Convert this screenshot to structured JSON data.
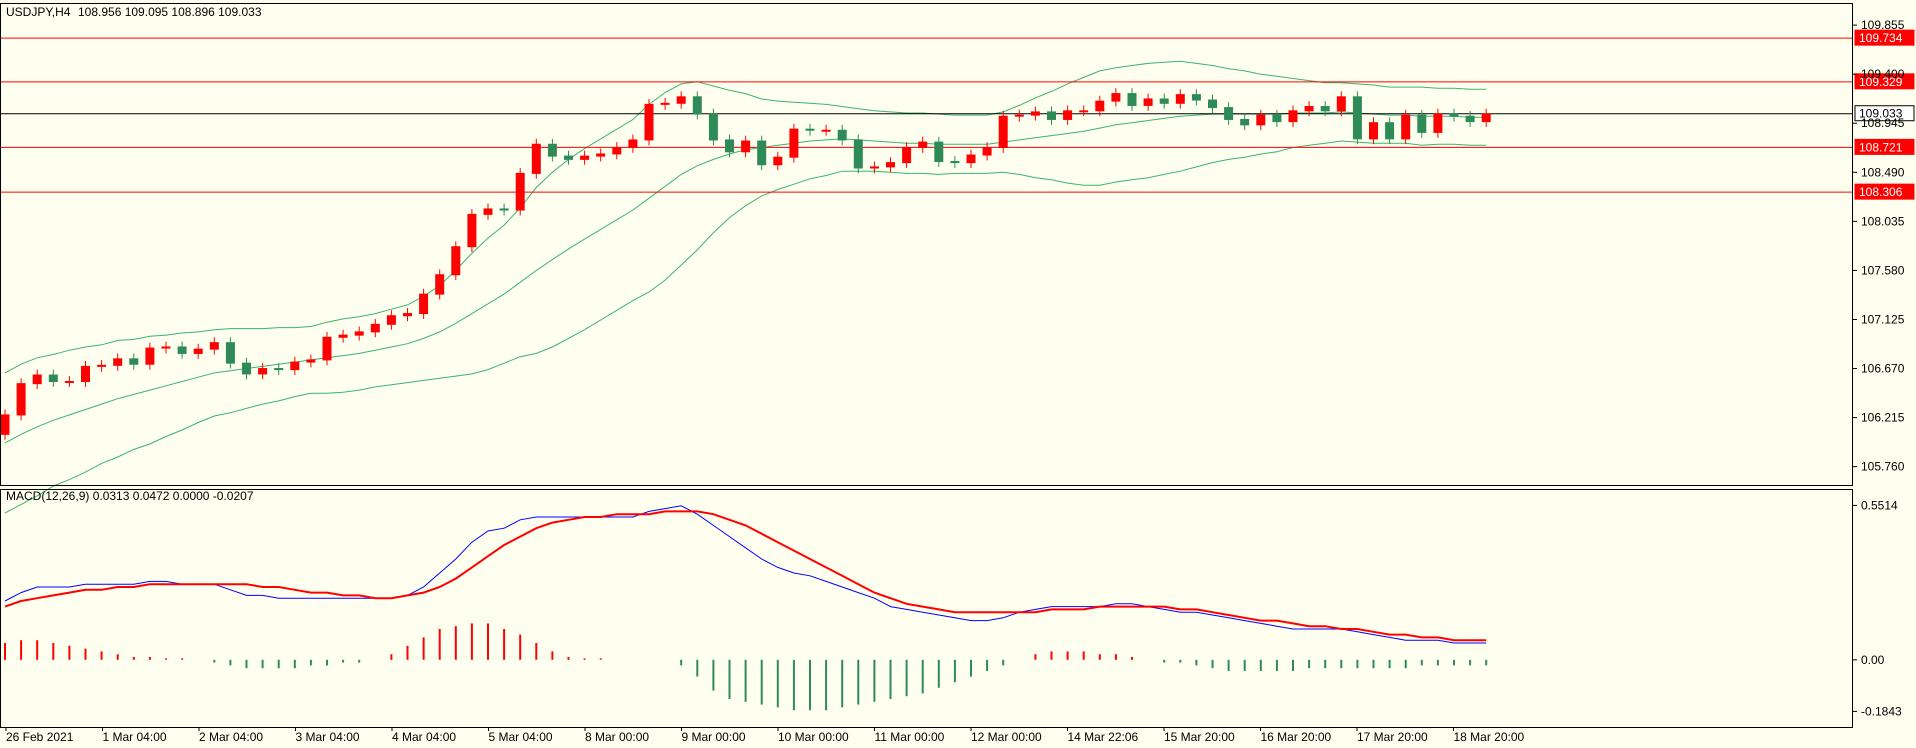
{
  "header": {
    "symbol": "USDJPY,H4",
    "ohlc": "108.956 109.095 108.896 109.033"
  },
  "macd": {
    "label": "MACD(12,26,9) 0.0313 0.0472 0.0000 -0.0207",
    "ticks": [
      "0.5514",
      "0.00",
      "-0.1843"
    ]
  },
  "price_axis": {
    "ticks": [
      "109.855",
      "109.400",
      "108.945",
      "108.490",
      "108.035",
      "107.580",
      "107.125",
      "106.670",
      "106.215",
      "105.760"
    ]
  },
  "levels": [
    {
      "label": "109.734",
      "value": 109.734,
      "kind": "red"
    },
    {
      "label": "109.329",
      "value": 109.329,
      "kind": "red"
    },
    {
      "label": "109.033",
      "value": 109.033,
      "kind": "current"
    },
    {
      "label": "108.721",
      "value": 108.721,
      "kind": "red"
    },
    {
      "label": "108.306",
      "value": 108.306,
      "kind": "red"
    }
  ],
  "time_axis": {
    "labels": [
      "26 Feb 2021",
      "1 Mar 04:00",
      "2 Mar 04:00",
      "3 Mar 04:00",
      "4 Mar 04:00",
      "5 Mar 04:00",
      "8 Mar 00:00",
      "9 Mar 00:00",
      "10 Mar 00:00",
      "11 Mar 00:00",
      "12 Mar 00:00",
      "14 Mar 22:06",
      "15 Mar 20:00",
      "16 Mar 20:00",
      "17 Mar 20:00",
      "18 Mar 20:00"
    ]
  },
  "colors": {
    "background": "#fffff0",
    "bull": "#ff0000",
    "bear": "#2e8b57",
    "bands": "#3cb371",
    "macd_line": "#0000ff",
    "signal_line": "#ff0000",
    "level": "#ff0000"
  },
  "chart_data": {
    "type": "candlestick",
    "ylim": [
      105.59,
      110.06
    ],
    "close": [
      106.24,
      106.53,
      106.61,
      106.55,
      106.55,
      106.69,
      106.7,
      106.76,
      106.71,
      106.86,
      106.87,
      106.81,
      106.85,
      106.91,
      106.72,
      106.62,
      106.67,
      106.66,
      106.73,
      106.75,
      106.96,
      106.98,
      107.01,
      107.08,
      107.16,
      107.18,
      107.36,
      107.54,
      107.8,
      108.1,
      108.15,
      108.14,
      108.48,
      108.75,
      108.64,
      108.61,
      108.64,
      108.66,
      108.72,
      108.79,
      109.12,
      109.13,
      109.19,
      109.03,
      108.79,
      108.68,
      108.78,
      108.56,
      108.63,
      108.89,
      108.88,
      108.88,
      108.79,
      108.53,
      108.54,
      108.58,
      108.72,
      108.77,
      108.59,
      108.58,
      108.65,
      108.72,
      109.01,
      109.02,
      109.05,
      108.98,
      109.06,
      109.06,
      109.15,
      109.22,
      109.11,
      109.17,
      109.13,
      109.21,
      109.16,
      109.09,
      108.98,
      108.93,
      109.02,
      108.96,
      109.06,
      109.1,
      109.06,
      109.19,
      108.8,
      108.95,
      108.8,
      109.02,
      108.86,
      109.03,
      109.01,
      108.96,
      109.03
    ],
    "bollinger": {
      "upper": [
        106.63,
        106.71,
        106.77,
        106.8,
        106.84,
        106.87,
        106.89,
        106.93,
        106.94,
        106.97,
        106.98,
        107.0,
        107.01,
        107.03,
        107.04,
        107.04,
        107.04,
        107.05,
        107.05,
        107.06,
        107.1,
        107.13,
        107.15,
        107.18,
        107.22,
        107.26,
        107.34,
        107.44,
        107.58,
        107.74,
        107.88,
        108.0,
        108.16,
        108.35,
        108.49,
        108.61,
        108.71,
        108.8,
        108.89,
        108.98,
        109.12,
        109.23,
        109.31,
        109.33,
        109.29,
        109.25,
        109.22,
        109.17,
        109.15,
        109.14,
        109.13,
        109.12,
        109.1,
        109.08,
        109.06,
        109.05,
        109.04,
        109.04,
        109.03,
        109.02,
        109.02,
        109.02,
        109.05,
        109.11,
        109.18,
        109.24,
        109.31,
        109.37,
        109.43,
        109.46,
        109.48,
        109.5,
        109.51,
        109.52,
        109.5,
        109.48,
        109.45,
        109.43,
        109.4,
        109.38,
        109.36,
        109.34,
        109.32,
        109.32,
        109.31,
        109.3,
        109.28,
        109.28,
        109.28,
        109.27,
        109.27,
        109.26,
        109.26
      ],
      "middle": [
        105.98,
        106.06,
        106.13,
        106.19,
        106.24,
        106.29,
        106.34,
        106.39,
        106.43,
        106.47,
        106.51,
        106.55,
        106.59,
        106.63,
        106.65,
        106.67,
        106.69,
        106.71,
        106.73,
        106.75,
        106.77,
        106.79,
        106.81,
        106.84,
        106.87,
        106.9,
        106.95,
        107.01,
        107.09,
        107.18,
        107.27,
        107.36,
        107.47,
        107.58,
        107.68,
        107.78,
        107.87,
        107.96,
        108.05,
        108.14,
        108.25,
        108.36,
        108.47,
        108.55,
        108.61,
        108.66,
        108.7,
        108.72,
        108.74,
        108.76,
        108.78,
        108.79,
        108.8,
        108.79,
        108.78,
        108.77,
        108.76,
        108.76,
        108.75,
        108.75,
        108.75,
        108.75,
        108.77,
        108.79,
        108.81,
        108.83,
        108.85,
        108.87,
        108.9,
        108.93,
        108.95,
        108.97,
        108.99,
        109.01,
        109.02,
        109.03,
        109.03,
        109.03,
        109.03,
        109.03,
        109.04,
        109.04,
        109.04,
        109.05,
        109.04,
        109.03,
        109.02,
        109.02,
        109.01,
        109.01,
        109.01,
        109.0,
        109.0
      ],
      "lower": [
        105.33,
        105.41,
        105.49,
        105.58,
        105.64,
        105.71,
        105.79,
        105.85,
        105.92,
        105.97,
        106.04,
        106.1,
        106.17,
        106.23,
        106.26,
        106.3,
        106.34,
        106.37,
        106.41,
        106.44,
        106.44,
        106.45,
        106.47,
        106.5,
        106.52,
        106.54,
        106.56,
        106.58,
        106.6,
        106.62,
        106.66,
        106.72,
        106.78,
        106.81,
        106.87,
        106.95,
        107.03,
        107.12,
        107.21,
        107.3,
        107.38,
        107.49,
        107.63,
        107.77,
        107.93,
        108.07,
        108.18,
        108.27,
        108.33,
        108.38,
        108.43,
        108.46,
        108.5,
        108.5,
        108.5,
        108.49,
        108.48,
        108.48,
        108.47,
        108.48,
        108.48,
        108.48,
        108.49,
        108.47,
        108.44,
        108.42,
        108.39,
        108.37,
        108.37,
        108.4,
        108.42,
        108.44,
        108.47,
        108.5,
        108.54,
        108.58,
        108.61,
        108.63,
        108.66,
        108.68,
        108.72,
        108.74,
        108.76,
        108.78,
        108.77,
        108.76,
        108.76,
        108.76,
        108.74,
        108.75,
        108.75,
        108.74,
        108.74
      ]
    },
    "macd_ylim": [
      -0.24,
      0.61
    ],
    "macd_line": [
      0.21,
      0.24,
      0.26,
      0.26,
      0.26,
      0.27,
      0.27,
      0.27,
      0.27,
      0.28,
      0.28,
      0.27,
      0.27,
      0.27,
      0.25,
      0.23,
      0.23,
      0.22,
      0.22,
      0.22,
      0.22,
      0.22,
      0.22,
      0.22,
      0.22,
      0.23,
      0.26,
      0.31,
      0.36,
      0.42,
      0.46,
      0.47,
      0.5,
      0.51,
      0.51,
      0.51,
      0.51,
      0.51,
      0.51,
      0.51,
      0.53,
      0.54,
      0.55,
      0.52,
      0.48,
      0.44,
      0.4,
      0.36,
      0.33,
      0.31,
      0.3,
      0.28,
      0.26,
      0.24,
      0.22,
      0.19,
      0.18,
      0.17,
      0.16,
      0.15,
      0.14,
      0.14,
      0.15,
      0.17,
      0.18,
      0.19,
      0.19,
      0.19,
      0.19,
      0.2,
      0.2,
      0.19,
      0.18,
      0.17,
      0.17,
      0.16,
      0.15,
      0.14,
      0.13,
      0.12,
      0.11,
      0.11,
      0.11,
      0.11,
      0.1,
      0.09,
      0.08,
      0.07,
      0.07,
      0.07,
      0.06,
      0.06,
      0.06
    ],
    "signal_line": [
      0.19,
      0.21,
      0.22,
      0.23,
      0.24,
      0.25,
      0.25,
      0.26,
      0.26,
      0.27,
      0.27,
      0.27,
      0.27,
      0.27,
      0.27,
      0.27,
      0.26,
      0.26,
      0.25,
      0.24,
      0.24,
      0.23,
      0.23,
      0.22,
      0.22,
      0.23,
      0.24,
      0.26,
      0.29,
      0.33,
      0.37,
      0.41,
      0.44,
      0.47,
      0.49,
      0.5,
      0.51,
      0.51,
      0.52,
      0.52,
      0.52,
      0.53,
      0.53,
      0.53,
      0.52,
      0.5,
      0.48,
      0.45,
      0.42,
      0.39,
      0.36,
      0.33,
      0.3,
      0.27,
      0.24,
      0.22,
      0.2,
      0.19,
      0.18,
      0.17,
      0.17,
      0.17,
      0.17,
      0.17,
      0.17,
      0.18,
      0.18,
      0.18,
      0.19,
      0.19,
      0.19,
      0.19,
      0.19,
      0.18,
      0.18,
      0.17,
      0.16,
      0.15,
      0.14,
      0.14,
      0.13,
      0.12,
      0.12,
      0.11,
      0.11,
      0.1,
      0.09,
      0.09,
      0.08,
      0.08,
      0.07,
      0.07,
      0.07
    ],
    "histogram": [
      0.06,
      0.07,
      0.07,
      0.06,
      0.05,
      0.04,
      0.03,
      0.02,
      0.01,
      0.01,
      0.005,
      0.005,
      0.0,
      -0.01,
      -0.02,
      -0.03,
      -0.03,
      -0.03,
      -0.03,
      -0.02,
      -0.02,
      -0.01,
      -0.01,
      0.0,
      0.02,
      0.05,
      0.08,
      0.11,
      0.12,
      0.13,
      0.13,
      0.11,
      0.09,
      0.06,
      0.03,
      0.01,
      0.005,
      0.005,
      0.0,
      0.0,
      0.0,
      0.0,
      -0.02,
      -0.06,
      -0.11,
      -0.14,
      -0.15,
      -0.16,
      -0.17,
      -0.18,
      -0.18,
      -0.18,
      -0.17,
      -0.16,
      -0.15,
      -0.14,
      -0.13,
      -0.12,
      -0.1,
      -0.08,
      -0.06,
      -0.04,
      -0.02,
      0.0,
      0.02,
      0.03,
      0.03,
      0.03,
      0.02,
      0.02,
      0.01,
      0.0,
      -0.01,
      -0.01,
      -0.02,
      -0.03,
      -0.04,
      -0.04,
      -0.04,
      -0.04,
      -0.04,
      -0.03,
      -0.03,
      -0.03,
      -0.03,
      -0.03,
      -0.03,
      -0.03,
      -0.02,
      -0.02,
      -0.02,
      -0.02,
      -0.02
    ]
  }
}
